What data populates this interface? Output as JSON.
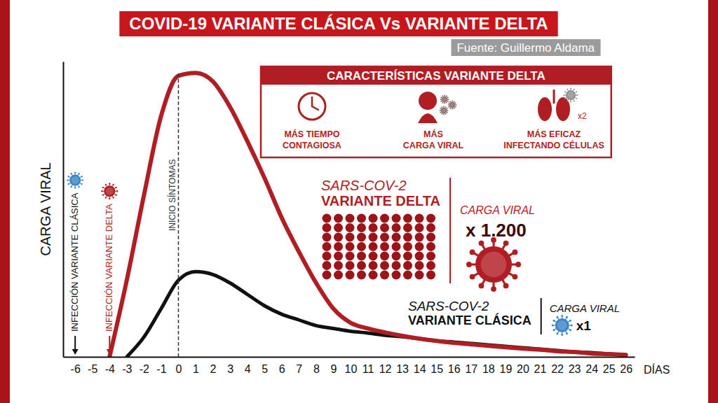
{
  "chart_data": {
    "type": "line",
    "title": "COVID-19 VARIANTE CLÁSICA Vs VARIANTE DELTA",
    "subtitle": "Fuente: Guillermo Aldama",
    "y_label": "CARGA VIRAL",
    "x_label": "DÍAS",
    "x": [
      -6,
      -5,
      -4,
      -3,
      -2,
      -1,
      0,
      1,
      2,
      3,
      4,
      5,
      6,
      7,
      8,
      9,
      10,
      11,
      12,
      13,
      14,
      15,
      16,
      17,
      18,
      19,
      20,
      21,
      22,
      23,
      24,
      25,
      26
    ],
    "xlim": [
      -6.7,
      26.5
    ],
    "xticks": [
      -6,
      -5,
      -4,
      -3,
      -2,
      -1,
      0,
      1,
      2,
      3,
      4,
      5,
      6,
      7,
      8,
      9,
      10,
      11,
      12,
      13,
      14,
      15,
      16,
      17,
      18,
      19,
      20,
      21,
      22,
      23,
      24,
      25,
      26
    ],
    "ylim": [
      0,
      104
    ],
    "tick_labels": "x",
    "grid": false,
    "series": [
      {
        "name": "VARIANTE DELTA",
        "prefix": "SARS-COV-2",
        "load_label": "CARGA VIRAL",
        "load_factor": "x 1.200",
        "color": "#b01e23",
        "values": [
          null,
          null,
          0,
          27,
          57,
          85,
          99,
          100,
          97,
          88,
          76,
          63,
          49,
          37,
          26,
          17,
          12,
          10,
          8.6,
          7.4,
          6.4,
          5.6,
          4.9,
          4.4,
          3.9,
          3.4,
          2.9,
          2.5,
          2.0,
          1.7,
          1.2,
          1.0,
          0.7
        ]
      },
      {
        "name": "VARIANTE CLÁSICA",
        "prefix": "SARS-COV-2",
        "load_label": "CARGA VIRAL",
        "load_factor": "x1",
        "color": "#111111",
        "values": [
          null,
          null,
          null,
          0,
          7,
          17,
          27,
          30,
          29,
          26,
          22,
          18,
          15,
          13,
          11,
          10,
          9,
          8.4,
          7.6,
          7.1,
          6.4,
          5.6,
          5.2,
          4.7,
          4.2,
          3.7,
          3.2,
          2.7,
          2.2,
          1.7,
          1.5,
          1.0,
          0.7
        ]
      }
    ],
    "annotations": [
      {
        "text": "INFECCIÓN VARIANTE CLÁSICA",
        "x": -6,
        "color": "#111111"
      },
      {
        "text": "INFECCIÓN VARIANTE DELTA",
        "x": -4,
        "color": "#b01e23"
      },
      {
        "text": "INICIO SÍNTOMAS",
        "x": 0,
        "color": "#333333",
        "line_style": "dashed"
      }
    ],
    "panel": {
      "title": "CARACTERÍSTICAS VARIANTE DELTA",
      "items": [
        {
          "lines": [
            "MÁS TIEMPO",
            "CONTAGIOSA"
          ]
        },
        {
          "lines": [
            "MÁS",
            "CARGA VIRAL"
          ]
        },
        {
          "lines": [
            "MÁS EFICAZ",
            "INFECTANDO CÉLULAS"
          ],
          "badge": "x2"
        }
      ]
    }
  }
}
